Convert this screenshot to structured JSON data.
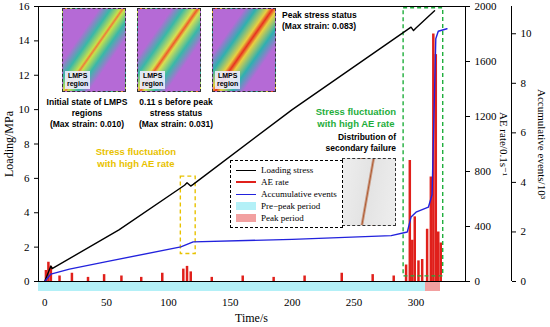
{
  "chart_data": {
    "type": "line",
    "x_label": "Time/s",
    "xlim": [
      -5,
      340
    ],
    "xticks": [
      0,
      50,
      100,
      150,
      200,
      250,
      300
    ],
    "y_label": "Loading/MPa",
    "ylim": [
      0,
      16
    ],
    "yticks": [
      0,
      2,
      4,
      6,
      8,
      10,
      12,
      14,
      16
    ],
    "y2_label": "AE rate/0.1s⁻¹",
    "y2lim": [
      0,
      2000
    ],
    "y2ticks": [
      0,
      400,
      800,
      1200,
      1600,
      2000
    ],
    "y3_label": "Accumulative events/10³",
    "y3lim": [
      0,
      11.1
    ],
    "y3ticks": [
      0,
      2,
      4,
      6,
      8,
      10
    ],
    "series": [
      {
        "name": "Loading stress",
        "type": "line",
        "color": "#000000",
        "x": [
          0,
          5,
          6,
          60,
          113,
          115,
          118,
          120,
          200,
          294,
          296,
          298,
          300,
          315
        ],
        "values": [
          0,
          0.9,
          0.75,
          3.0,
          5.6,
          5.75,
          5.55,
          5.65,
          10.0,
          14.7,
          14.8,
          14.6,
          14.75,
          15.75
        ]
      },
      {
        "name": "AE rate",
        "type": "bar",
        "axis": "y2",
        "color": "#e0201b",
        "x": [
          1,
          3,
          5,
          12,
          22,
          35,
          48,
          62,
          78,
          95,
          112,
          115,
          118,
          135,
          160,
          185,
          210,
          240,
          265,
          282,
          292,
          295,
          297,
          299,
          302,
          305,
          309,
          312,
          314,
          316,
          318,
          320
        ],
        "values": [
          80,
          140,
          110,
          40,
          60,
          30,
          50,
          40,
          30,
          60,
          90,
          110,
          70,
          30,
          40,
          30,
          40,
          60,
          50,
          40,
          120,
          880,
          300,
          470,
          150,
          160,
          380,
          760,
          1800,
          1650,
          360,
          280
        ]
      },
      {
        "name": "Accumulative events",
        "type": "line",
        "axis": "y3",
        "color": "#2222dd",
        "x": [
          0,
          5,
          20,
          50,
          110,
          120,
          200,
          280,
          293,
          296,
          300,
          310,
          313,
          316,
          318,
          325
        ],
        "values": [
          0,
          0.3,
          0.5,
          0.8,
          1.4,
          1.6,
          1.7,
          1.85,
          2.0,
          2.6,
          2.8,
          3.0,
          3.5,
          9.8,
          10.1,
          10.2
        ]
      }
    ],
    "periods": [
      {
        "name": "Pre−peak period",
        "start": -5,
        "end": 308,
        "color": "#b3f0f7"
      },
      {
        "name": "Peak period",
        "start": 308,
        "end": 320,
        "color": "#f2a0a0"
      }
    ],
    "regions": [
      {
        "text": [
          "Stress fluctuation",
          "with high AE rate"
        ],
        "color": "#e8c200",
        "x": [
          110,
          122
        ],
        "y": [
          1.6,
          6.1
        ]
      },
      {
        "text": [
          "Stress fluctuation",
          "with high AE rate"
        ],
        "color": "#1fae3c",
        "x": [
          290,
          322
        ],
        "y": [
          0.3,
          15.9
        ]
      }
    ],
    "insets": [
      {
        "caption": [
          "Initial state of LMPS",
          "regions",
          "(Max strain: 0.010)"
        ],
        "label": [
          "LMPS",
          "region"
        ]
      },
      {
        "caption": [
          "0.11 s before peak",
          "stress status",
          "(Max strain: 0.031)"
        ],
        "label": [
          "LMPS",
          "region"
        ]
      },
      {
        "caption": [
          "Peak stress status",
          "(Max strain: 0.083)"
        ],
        "label": [
          "LMPS",
          "region"
        ]
      }
    ],
    "secondary_inset": {
      "caption": [
        "Distribution of",
        "secondary failure"
      ]
    }
  }
}
